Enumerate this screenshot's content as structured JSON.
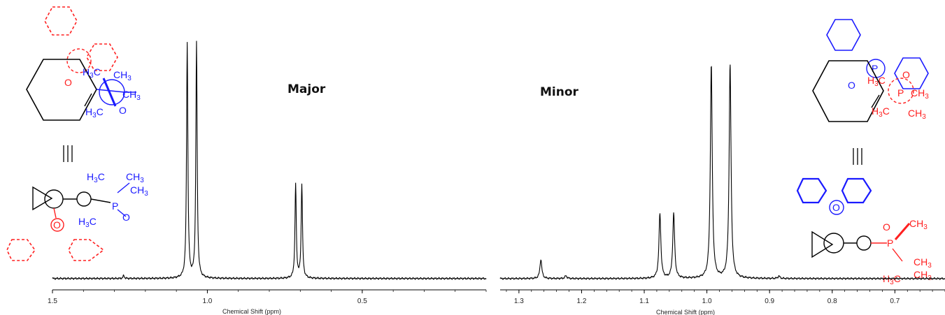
{
  "colors": {
    "spectrum": "#000000",
    "major_isomer": "#1a1aff",
    "minor_isomer": "#ff2020"
  },
  "chart_data": [
    {
      "type": "line",
      "label": "Major",
      "xlabel": "Chemical Shift (ppm)",
      "xlim": [
        1.5,
        0.1
      ],
      "x_reversed": true,
      "ticks": [
        "1.5",
        "1.0",
        "0.5"
      ],
      "grid": false,
      "peaks": [
        {
          "x": 1.27,
          "y": 0.012
        },
        {
          "x": 1.065,
          "y": 0.95
        },
        {
          "x": 1.035,
          "y": 0.95
        },
        {
          "x": 0.715,
          "y": 0.38
        },
        {
          "x": 0.695,
          "y": 0.38
        }
      ]
    },
    {
      "type": "line",
      "label": "Minor",
      "xlabel": "Chemical Shift (ppm)",
      "xlim": [
        1.33,
        0.62
      ],
      "x_reversed": true,
      "ticks": [
        "1.3",
        "1.2",
        "1.1",
        "1.0",
        "0.9",
        "0.8",
        "0.7"
      ],
      "grid": false,
      "peaks": [
        {
          "x": 1.265,
          "y": 0.08
        },
        {
          "x": 1.225,
          "y": 0.012
        },
        {
          "x": 1.075,
          "y": 0.27
        },
        {
          "x": 1.053,
          "y": 0.27
        },
        {
          "x": 0.993,
          "y": 0.89
        },
        {
          "x": 0.963,
          "y": 0.89
        },
        {
          "x": 0.885,
          "y": 0.01
        }
      ]
    }
  ],
  "structures": {
    "major": {
      "top_labels": [
        "H3C",
        "CH3",
        "CH3",
        "H3C",
        "O",
        "O"
      ],
      "equiv": "|||",
      "bottom_labels": [
        "H3C",
        "CH3",
        "H3C",
        "P",
        "O",
        "O"
      ]
    },
    "minor": {
      "top_labels": [
        "P",
        "O",
        "H3C",
        "O",
        "P",
        "CH3",
        "H3C",
        "CH3"
      ],
      "equiv": "|||",
      "bottom_labels": [
        "O",
        "P",
        "CH3",
        "H3C",
        "CH3",
        "O"
      ]
    }
  }
}
